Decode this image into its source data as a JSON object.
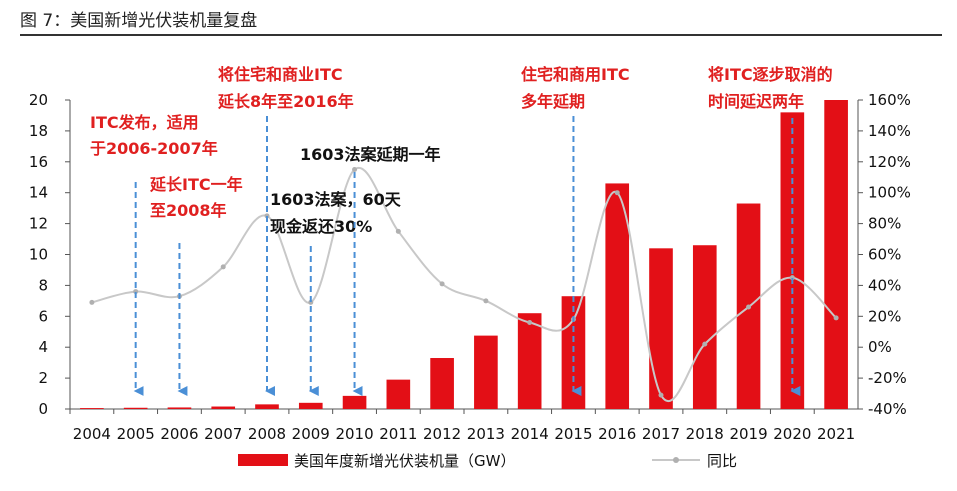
{
  "figure_title": "图 7：美国新增光伏装机量复盘",
  "chart_data": {
    "type": "bar",
    "categories": [
      "2004",
      "2005",
      "2006",
      "2007",
      "2008",
      "2009",
      "2010",
      "2011",
      "2012",
      "2013",
      "2014",
      "2015",
      "2016",
      "2017",
      "2018",
      "2019",
      "2020",
      "2021"
    ],
    "series": [
      {
        "name": "美国年度新增光伏装机量（GW）",
        "type": "bar",
        "axis": "left",
        "color": "#e30f16",
        "values": [
          0.06,
          0.08,
          0.1,
          0.16,
          0.3,
          0.4,
          0.85,
          1.9,
          3.3,
          4.75,
          6.2,
          7.3,
          14.6,
          10.4,
          10.6,
          13.3,
          19.2,
          20.0
        ]
      },
      {
        "name": "同比",
        "type": "line",
        "axis": "right",
        "color": "#c8c8c8",
        "values": [
          29,
          36,
          33,
          52,
          85,
          29,
          115,
          75,
          41,
          30,
          16,
          18,
          100,
          -31,
          2,
          26,
          45,
          19
        ]
      }
    ],
    "y_left": {
      "ylim": [
        0,
        20
      ],
      "ticks": [
        "0",
        "2",
        "4",
        "6",
        "8",
        "10",
        "12",
        "14",
        "16",
        "18",
        "20"
      ]
    },
    "y_right": {
      "ylim": [
        -40,
        160
      ],
      "ticks": [
        "-40%",
        "-20%",
        "0%",
        "20%",
        "40%",
        "60%",
        "80%",
        "100%",
        "120%",
        "140%",
        "160%"
      ]
    },
    "annotations": [
      {
        "id": "a1",
        "lines": [
          "ITC发布，适用",
          "于2006-2007年"
        ],
        "color": "red",
        "arrow_year": "2005"
      },
      {
        "id": "a2",
        "lines": [
          "延长ITC一年",
          "至2008年"
        ],
        "color": "red",
        "arrow_year": "2006"
      },
      {
        "id": "a3",
        "lines": [
          "将住宅和商业ITC",
          "延长8年至2016年"
        ],
        "color": "red",
        "arrow_year": "2008"
      },
      {
        "id": "a4",
        "lines": [
          "1603法案，60天",
          "现金返还30%"
        ],
        "color": "black",
        "arrow_year": "2009"
      },
      {
        "id": "a5",
        "lines": [
          "1603法案延期一年"
        ],
        "color": "black",
        "arrow_year": "2010"
      },
      {
        "id": "a6",
        "lines": [
          "住宅和商用ITC",
          "多年延期"
        ],
        "color": "red",
        "arrow_year": "2015"
      },
      {
        "id": "a7",
        "lines": [
          "将ITC逐步取消的",
          "时间延迟两年"
        ],
        "color": "red",
        "arrow_year": "2020"
      }
    ],
    "legend": {
      "bar_label": "美国年度新增光伏装机量（GW）",
      "line_label": "同比",
      "position": "bottom"
    }
  }
}
